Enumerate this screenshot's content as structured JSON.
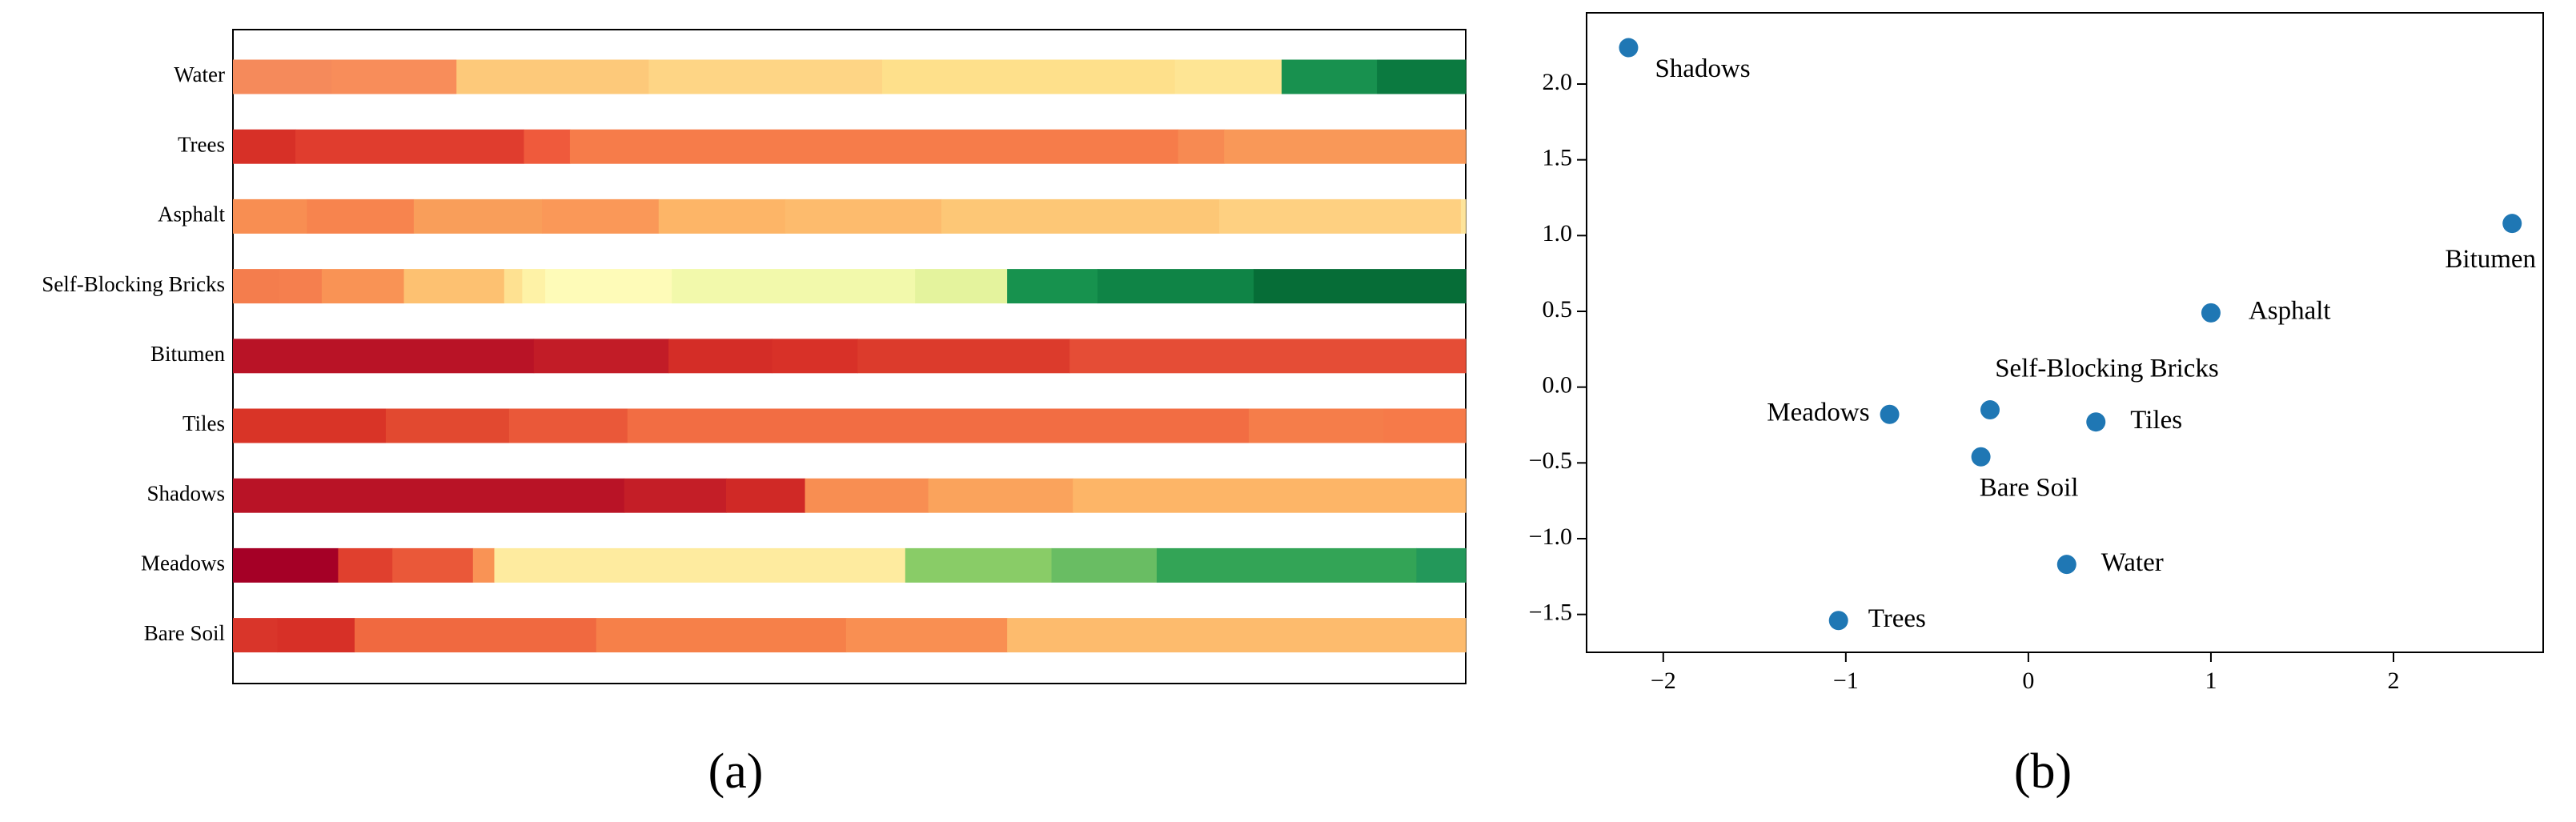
{
  "chart_data": [
    {
      "type": "bar",
      "orientation": "horizontal",
      "caption": "(a)",
      "categories": [
        "Water",
        "Trees",
        "Asphalt",
        "Self-Blocking Bricks",
        "Bitumen",
        "Tiles",
        "Shadows",
        "Meadows",
        "Bare Soil"
      ],
      "segments": [
        [
          60,
          76,
          117,
          142,
          178,
          65,
          58,
          54
        ],
        [
          38,
          139,
          28,
          370,
          28,
          147
        ],
        [
          45,
          65,
          78,
          71,
          77,
          95,
          169,
          147,
          3
        ],
        [
          28,
          26,
          50,
          61,
          11,
          14,
          77,
          148,
          56,
          55,
          95,
          129
        ],
        [
          183,
          82,
          63,
          52,
          129,
          241
        ],
        [
          93,
          75,
          72,
          378,
          82,
          50
        ],
        [
          238,
          62,
          48,
          75,
          88,
          239
        ],
        [
          64,
          33,
          49,
          13,
          250,
          89,
          64,
          158,
          30
        ],
        [
          27,
          47,
          147,
          152,
          98,
          279
        ]
      ],
      "colors": [
        [
          "#f58a5b",
          "#f88d5a",
          "#fdc97a",
          "#fed585",
          "#fee08b",
          "#fee594",
          "#18914f",
          "#0b7a40"
        ],
        [
          "#d73027",
          "#e03d2e",
          "#ef5a3c",
          "#f67c4a",
          "#f78a52",
          "#f99858"
        ],
        [
          "#f88e52",
          "#f7844e",
          "#f99e5a",
          "#fa9858",
          "#fdb567",
          "#fdbb6d",
          "#fdc776",
          "#fed081",
          "#fee49a"
        ],
        [
          "#f47d4d",
          "#f57f4e",
          "#f99355",
          "#fdc171",
          "#fee191",
          "#fef2a6",
          "#fefbb8",
          "#f2f9ab",
          "#e4f39d",
          "#17924e",
          "#0f8446",
          "#066d37"
        ],
        [
          "#b91326",
          "#c21c27",
          "#d42d27",
          "#d83128",
          "#dc3b2c",
          "#e54d36"
        ],
        [
          "#d93427",
          "#e24930",
          "#ea5839",
          "#f26d43",
          "#f57d4a",
          "#f67a49"
        ],
        [
          "#b91326",
          "#c41e27",
          "#d02926",
          "#f88e52",
          "#faa35c",
          "#fdb567"
        ],
        [
          "#a50026",
          "#e0402e",
          "#ea5839",
          "#f99355",
          "#feeb9f",
          "#89cc67",
          "#69bd63",
          "#33a456",
          "#23985a"
        ],
        [
          "#d9352a",
          "#d73027",
          "#f06940",
          "#f68049",
          "#f98f52",
          "#fdbb6d"
        ]
      ]
    },
    {
      "type": "scatter",
      "caption": "(b)",
      "color": "#1f77b4",
      "labels": [
        "Shadows",
        "Bitumen",
        "Asphalt",
        "Self-Blocking Bricks",
        "Meadows",
        "Tiles",
        "Bare Soil",
        "Water",
        "Trees"
      ],
      "x": [
        -2.19,
        2.65,
        1.0,
        -0.21,
        -0.76,
        0.37,
        -0.26,
        0.21,
        -1.04
      ],
      "y": [
        2.24,
        1.08,
        0.49,
        -0.15,
        -0.18,
        -0.23,
        -0.46,
        -1.17,
        -1.54
      ],
      "xlim": [
        -2.42,
        2.82
      ],
      "ylim": [
        -1.75,
        2.47
      ],
      "xticks": [
        {
          "value": -2,
          "label": "−2"
        },
        {
          "value": -1,
          "label": "−1"
        },
        0,
        1,
        2
      ],
      "yticks": [
        {
          "value": -1.5,
          "label": "−1.5"
        },
        {
          "value": -1.0,
          "label": "−1.0"
        },
        {
          "value": -0.5,
          "label": "−0.5"
        },
        {
          "value": 0.0,
          "label": "0.0"
        },
        {
          "value": 0.5,
          "label": "0.5"
        },
        {
          "value": 1.0,
          "label": "1.0"
        },
        {
          "value": 1.5,
          "label": "1.5"
        },
        {
          "value": 2.0,
          "label": "2.0"
        }
      ]
    }
  ]
}
